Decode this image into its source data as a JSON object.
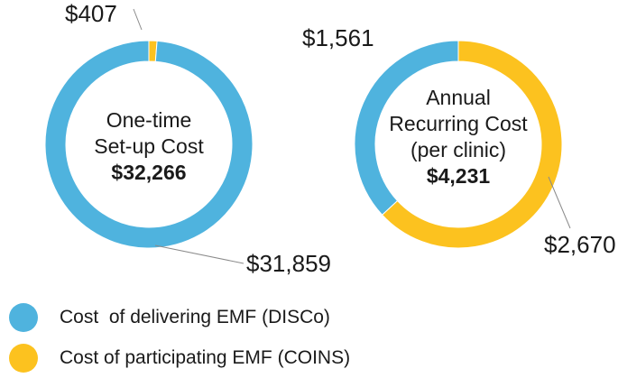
{
  "colors": {
    "disco": "#4fb3de",
    "coins": "#fcc21f"
  },
  "chart_data": [
    {
      "type": "pie",
      "donut": true,
      "center_lines": [
        "One-time",
        "Set-up Cost"
      ],
      "center_total": "$32,266",
      "slices": [
        {
          "series": "disco",
          "value": 31859,
          "label": "$31,859"
        },
        {
          "series": "coins",
          "value": 407,
          "label": "$407"
        }
      ]
    },
    {
      "type": "pie",
      "donut": true,
      "center_lines": [
        "Annual",
        "Recurring Cost",
        "(per clinic)"
      ],
      "center_total": "$4,231",
      "slices": [
        {
          "series": "disco",
          "value": 1561,
          "label": "$1,561"
        },
        {
          "series": "coins",
          "value": 2670,
          "label": "$2,670"
        }
      ]
    }
  ],
  "legend": [
    {
      "series": "disco",
      "label": "Cost  of delivering EMF (DISCo)"
    },
    {
      "series": "coins",
      "label": "Cost of participating EMF (COINS)"
    }
  ]
}
